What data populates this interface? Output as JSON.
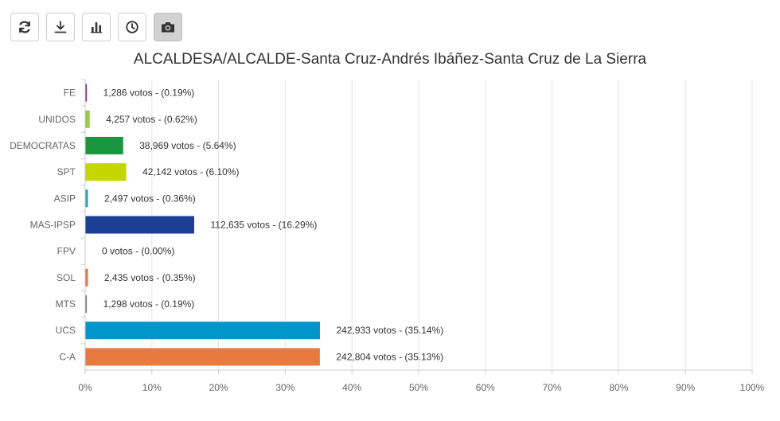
{
  "toolbar": {
    "buttons": [
      {
        "name": "refresh-button",
        "icon": "refresh-icon",
        "active": false
      },
      {
        "name": "download-button",
        "icon": "download-icon",
        "active": false
      },
      {
        "name": "bar-chart-button",
        "icon": "bar-chart-icon",
        "active": false
      },
      {
        "name": "history-button",
        "icon": "clock-icon",
        "active": false
      },
      {
        "name": "screenshot-button",
        "icon": "camera-icon",
        "active": true
      }
    ]
  },
  "chart_data": {
    "type": "bar",
    "orientation": "horizontal",
    "title": "ALCALDESA/ALCALDE-Santa Cruz-Andrés Ibáñez-Santa Cruz de La Sierra",
    "categories": [
      "FE",
      "UNIDOS",
      "DEMOCRATAS",
      "SPT",
      "ASIP",
      "MAS-IPSP",
      "FPV",
      "SOL",
      "MTS",
      "UCS",
      "C-A"
    ],
    "values": [
      0.19,
      0.62,
      5.64,
      6.1,
      0.36,
      16.29,
      0.0,
      0.35,
      0.19,
      35.14,
      35.13
    ],
    "votes": [
      1286,
      4257,
      38969,
      42142,
      2497,
      112635,
      0,
      2435,
      1298,
      242933,
      242804
    ],
    "data_labels": [
      "1,286 votos - (0.19%)",
      "4,257 votos - (0.62%)",
      "38,969 votos - (5.64%)",
      "42,142 votos - (6.10%)",
      "2,497 votos - (0.36%)",
      "112,635 votos - (16.29%)",
      "0 votos - (0.00%)",
      "2,435 votos - (0.35%)",
      "1,298 votos - (0.19%)",
      "242,933 votos - (35.14%)",
      "242,804 votos - (35.13%)"
    ],
    "colors": [
      "#8b2a8b",
      "#9ec93c",
      "#1a9641",
      "#c4d600",
      "#2fa3b5",
      "#1a3f94",
      "#3c8dc8",
      "#e8743b",
      "#7a7a7a",
      "#0096cc",
      "#e8793f"
    ],
    "xlim": [
      0,
      100
    ],
    "xticks": [
      "0%",
      "10%",
      "20%",
      "30%",
      "40%",
      "50%",
      "60%",
      "70%",
      "80%",
      "90%",
      "100%"
    ],
    "tick_values": [
      0,
      10,
      20,
      30,
      40,
      50,
      60,
      70,
      80,
      90,
      100
    ],
    "grid": true,
    "legend": "none",
    "xlabel": "",
    "ylabel": ""
  }
}
